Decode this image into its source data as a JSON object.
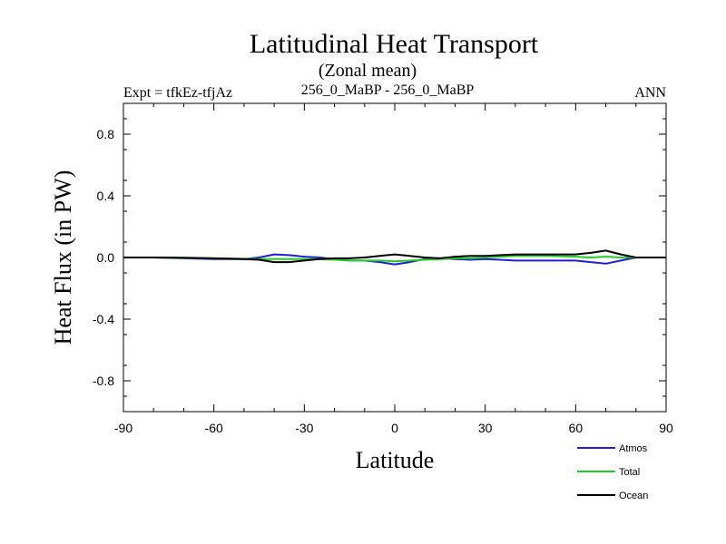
{
  "chart_data": {
    "type": "line",
    "title": "Latitudinal Heat Transport",
    "subtitle": "(Zonal mean)",
    "left_label": "Expt = tfkEz-tfjAz",
    "center_label": "256_0_MaBP - 256_0_MaBP",
    "right_label": "ANN",
    "xlabel": "Latitude",
    "ylabel": "Heat Flux (in PW)",
    "xlim": [
      -90,
      90
    ],
    "ylim": [
      -1,
      1
    ],
    "xticks": [
      -90,
      -60,
      -30,
      0,
      30,
      60,
      90
    ],
    "xtick_labels": [
      "-90",
      "-60",
      "-30",
      "0",
      "30",
      "60",
      "90"
    ],
    "yticks": [
      -0.8,
      -0.4,
      0.0,
      0.4,
      0.8
    ],
    "ytick_labels": [
      "-0.8",
      "-0.4",
      "0.0",
      "0.4",
      "0.8"
    ],
    "grid": false,
    "legend_position": "bottom-right",
    "x": [
      -90,
      -80,
      -70,
      -60,
      -50,
      -45,
      -40,
      -35,
      -30,
      -25,
      -20,
      -15,
      -10,
      -5,
      0,
      5,
      10,
      15,
      20,
      25,
      30,
      35,
      40,
      45,
      50,
      55,
      60,
      65,
      70,
      75,
      80,
      85,
      90
    ],
    "series": [
      {
        "name": "Atmos",
        "color": "#1f1fd6",
        "values": [
          0.0,
          0.0,
          -0.005,
          -0.01,
          -0.01,
          0.0,
          0.02,
          0.015,
          0.005,
          0.0,
          -0.01,
          -0.02,
          -0.02,
          -0.03,
          -0.045,
          -0.03,
          -0.01,
          -0.005,
          -0.01,
          -0.015,
          -0.01,
          -0.015,
          -0.02,
          -0.02,
          -0.02,
          -0.02,
          -0.02,
          -0.03,
          -0.04,
          -0.02,
          0.0,
          0.0,
          0.0
        ]
      },
      {
        "name": "Total",
        "color": "#22cc22",
        "values": [
          0.0,
          0.0,
          -0.003,
          -0.005,
          -0.008,
          -0.01,
          -0.01,
          -0.01,
          -0.01,
          -0.01,
          -0.015,
          -0.02,
          -0.02,
          -0.02,
          -0.025,
          -0.02,
          -0.015,
          -0.01,
          -0.005,
          -0.005,
          0.0,
          0.005,
          0.01,
          0.01,
          0.01,
          0.008,
          0.005,
          0.0,
          0.005,
          0.0,
          0.0,
          0.0,
          0.0
        ]
      },
      {
        "name": "Ocean",
        "color": "#000000",
        "values": [
          0.0,
          0.0,
          -0.002,
          -0.005,
          -0.01,
          -0.015,
          -0.03,
          -0.03,
          -0.02,
          -0.01,
          -0.005,
          -0.005,
          0.0,
          0.01,
          0.02,
          0.01,
          0.0,
          -0.005,
          0.005,
          0.01,
          0.01,
          0.015,
          0.02,
          0.02,
          0.02,
          0.02,
          0.02,
          0.03,
          0.045,
          0.02,
          0.0,
          0.0,
          0.0
        ]
      }
    ]
  }
}
